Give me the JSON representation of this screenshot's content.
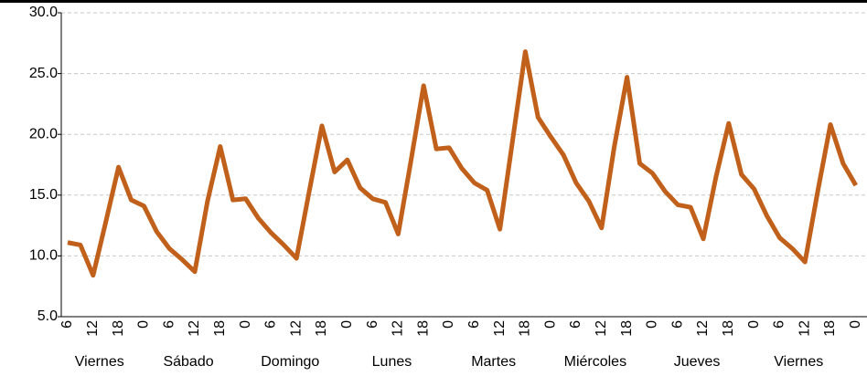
{
  "chart_data": {
    "type": "line",
    "categories": [
      "6",
      null,
      "12",
      null,
      "18",
      null,
      "0",
      null,
      "6",
      null,
      "12",
      null,
      "18",
      null,
      "0",
      null,
      "6",
      null,
      "12",
      null,
      "18",
      null,
      "0",
      null,
      "6",
      null,
      "12",
      null,
      "18",
      null,
      "0",
      null,
      "6",
      null,
      "12",
      null,
      "18",
      null,
      "0",
      null,
      "6",
      null,
      "12",
      null,
      "18",
      null,
      "0",
      null,
      "6",
      null,
      "12",
      null,
      "18",
      null,
      "0",
      null,
      "6",
      null,
      "12",
      null,
      "18",
      null,
      "0"
    ],
    "groups": [
      "Viernes",
      "Sábado",
      "Domingo",
      "Lunes",
      "Martes",
      "Miércoles",
      "Jueves",
      "Viernes"
    ],
    "values": [
      11.1,
      10.9,
      8.4,
      12.8,
      17.3,
      14.6,
      14.1,
      12.0,
      10.6,
      9.7,
      8.7,
      14.5,
      19.0,
      14.6,
      14.7,
      13.1,
      11.9,
      10.9,
      9.8,
      15.3,
      20.7,
      16.9,
      17.9,
      15.6,
      14.7,
      14.4,
      11.8,
      17.8,
      24.0,
      18.8,
      18.9,
      17.2,
      16.0,
      15.4,
      12.2,
      19.5,
      26.8,
      21.4,
      19.8,
      18.3,
      16.0,
      14.5,
      12.3,
      19.0,
      24.7,
      17.6,
      16.8,
      15.3,
      14.2,
      14.0,
      11.4,
      16.5,
      20.9,
      16.7,
      15.5,
      13.3,
      11.5,
      10.6,
      9.5,
      15.3,
      20.8,
      17.6,
      15.8
    ],
    "color": "#c0601a",
    "ylim": [
      5,
      30
    ],
    "yticks": [
      {
        "value": 5,
        "label": "5.0"
      },
      {
        "value": 10,
        "label": "10.0"
      },
      {
        "value": 15,
        "label": "15.0"
      },
      {
        "value": 20,
        "label": "20.0"
      },
      {
        "value": 25,
        "label": "25.0"
      },
      {
        "value": 30,
        "label": "30.0"
      }
    ],
    "grid": true
  }
}
